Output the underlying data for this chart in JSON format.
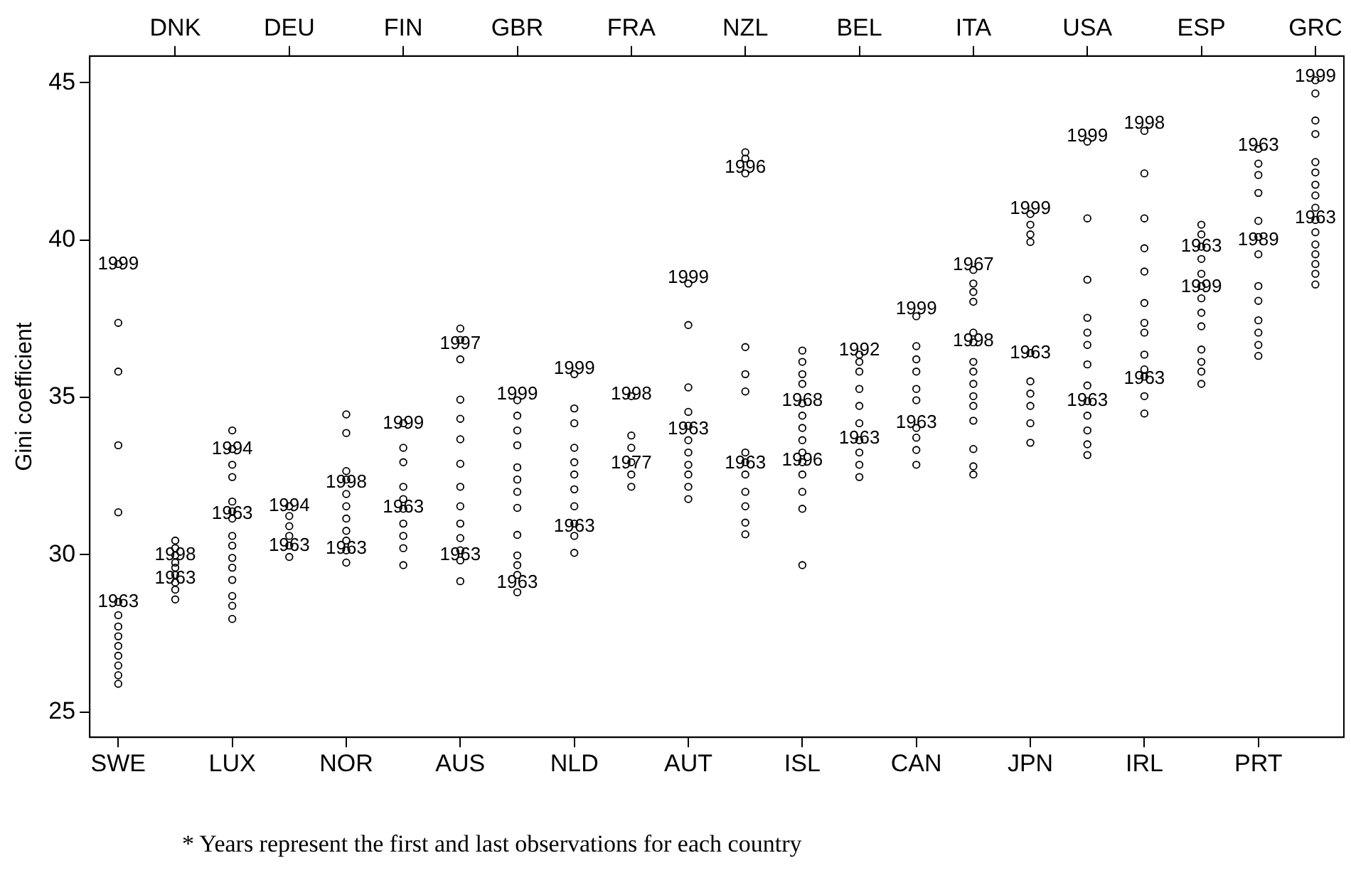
{
  "chart_data": {
    "type": "scatter",
    "ylabel": "Gini coefficient",
    "categories": [
      "SWE",
      "DNK",
      "LUX",
      "DEU",
      "NOR",
      "FIN",
      "AUS",
      "GBR",
      "NLD",
      "FRA",
      "AUT",
      "NZL",
      "ISL",
      "BEL",
      "CAN",
      "ITA",
      "JPN",
      "USA",
      "IRL",
      "ESP",
      "PRT",
      "GRC"
    ],
    "ylim": [
      24.2,
      45.85
    ],
    "yticks": [
      25,
      30,
      35,
      40,
      45
    ],
    "grid": false,
    "legend": false,
    "marker": "circle",
    "series": [
      {
        "color": "#000000",
        "x": [
          "SWE",
          "SWE",
          "SWE",
          "SWE",
          "SWE",
          "SWE",
          "SWE",
          "SWE",
          "SWE",
          "SWE",
          "SWE",
          "SWE",
          "SWE",
          "SWE"
        ],
        "values": [
          39.24,
          37.37,
          35.82,
          33.48,
          31.35,
          28.5,
          28.08,
          27.72,
          27.41,
          27.1,
          26.79,
          26.48,
          26.17,
          25.9
        ]
      },
      {
        "color": "#000000",
        "x": [
          "DNK",
          "DNK",
          "DNK",
          "DNK",
          "DNK",
          "DNK",
          "DNK",
          "DNK",
          "DNK"
        ],
        "values": [
          30.45,
          30.21,
          29.98,
          29.75,
          29.59,
          29.36,
          29.12,
          28.89,
          28.58
        ]
      },
      {
        "color": "#000000",
        "x": [
          "LUX",
          "LUX",
          "LUX",
          "LUX",
          "LUX",
          "LUX",
          "LUX",
          "LUX",
          "LUX",
          "LUX",
          "LUX",
          "LUX",
          "LUX",
          "LUX",
          "LUX"
        ],
        "values": [
          33.95,
          33.36,
          32.86,
          32.47,
          31.69,
          31.38,
          31.15,
          30.6,
          30.29,
          29.9,
          29.59,
          29.2,
          28.69,
          28.38,
          27.96
        ]
      },
      {
        "color": "#000000",
        "x": [
          "DEU",
          "DEU",
          "DEU",
          "DEU",
          "DEU",
          "DEU"
        ],
        "values": [
          31.54,
          31.23,
          30.91,
          30.6,
          30.29,
          29.93
        ]
      },
      {
        "color": "#000000",
        "x": [
          "NOR",
          "NOR",
          "NOR",
          "NOR",
          "NOR",
          "NOR",
          "NOR",
          "NOR",
          "NOR",
          "NOR",
          "NOR"
        ],
        "values": [
          34.46,
          33.87,
          32.66,
          32.39,
          31.93,
          31.54,
          31.15,
          30.76,
          30.45,
          30.14,
          29.75
        ]
      },
      {
        "color": "#000000",
        "x": [
          "FIN",
          "FIN",
          "FIN",
          "FIN",
          "FIN",
          "FIN",
          "FIN",
          "FIN",
          "FIN",
          "FIN"
        ],
        "values": [
          34.18,
          33.4,
          32.94,
          32.16,
          31.77,
          31.46,
          30.99,
          30.6,
          30.21,
          29.67
        ]
      },
      {
        "color": "#000000",
        "x": [
          "AUS",
          "AUS",
          "AUS",
          "AUS",
          "AUS",
          "AUS",
          "AUS",
          "AUS",
          "AUS",
          "AUS",
          "AUS",
          "AUS",
          "AUS",
          "AUS"
        ],
        "values": [
          37.19,
          36.83,
          36.21,
          34.93,
          34.32,
          33.67,
          32.89,
          32.16,
          31.54,
          30.99,
          30.53,
          30.14,
          29.82,
          29.16
        ]
      },
      {
        "color": "#000000",
        "x": [
          "GBR",
          "GBR",
          "GBR",
          "GBR",
          "GBR",
          "GBR",
          "GBR",
          "GBR",
          "GBR",
          "GBR",
          "GBR",
          "GBR",
          "GBR"
        ],
        "values": [
          34.91,
          34.42,
          33.95,
          33.48,
          32.78,
          32.39,
          32.0,
          31.49,
          30.63,
          29.98,
          29.67,
          29.36,
          28.81
        ]
      },
      {
        "color": "#000000",
        "x": [
          "NLD",
          "NLD",
          "NLD",
          "NLD",
          "NLD",
          "NLD",
          "NLD",
          "NLD",
          "NLD",
          "NLD",
          "NLD"
        ],
        "values": [
          35.74,
          34.65,
          34.18,
          33.4,
          32.94,
          32.55,
          32.08,
          31.54,
          30.99,
          30.6,
          30.06
        ]
      },
      {
        "color": "#000000",
        "x": [
          "FRA",
          "FRA",
          "FRA",
          "FRA",
          "FRA",
          "FRA"
        ],
        "values": [
          35.04,
          33.79,
          33.4,
          32.94,
          32.55,
          32.16
        ]
      },
      {
        "color": "#000000",
        "x": [
          "AUT",
          "AUT",
          "AUT",
          "AUT",
          "AUT",
          "AUT",
          "AUT",
          "AUT",
          "AUT",
          "AUT",
          "AUT"
        ],
        "values": [
          38.62,
          37.3,
          35.32,
          34.54,
          34.1,
          33.64,
          33.25,
          32.86,
          32.55,
          32.16,
          31.77
        ]
      },
      {
        "color": "#000000",
        "x": [
          "NZL",
          "NZL",
          "NZL",
          "NZL",
          "NZL",
          "NZL",
          "NZL",
          "NZL",
          "NZL",
          "NZL",
          "NZL",
          "NZL",
          "NZL"
        ],
        "values": [
          42.79,
          42.59,
          42.12,
          36.6,
          35.74,
          35.19,
          33.25,
          32.94,
          32.55,
          32.0,
          31.54,
          31.02,
          30.65
        ]
      },
      {
        "color": "#000000",
        "x": [
          "ISL",
          "ISL",
          "ISL",
          "ISL",
          "ISL",
          "ISL",
          "ISL",
          "ISL",
          "ISL",
          "ISL",
          "ISL",
          "ISL",
          "ISL",
          "ISL"
        ],
        "values": [
          36.49,
          36.13,
          35.74,
          35.43,
          34.81,
          34.42,
          34.03,
          33.64,
          33.25,
          32.94,
          32.55,
          32.0,
          31.46,
          29.67
        ]
      },
      {
        "color": "#000000",
        "x": [
          "BEL",
          "BEL",
          "BEL",
          "BEL",
          "BEL",
          "BEL",
          "BEL",
          "BEL",
          "BEL",
          "BEL"
        ],
        "values": [
          36.36,
          36.13,
          35.82,
          35.27,
          34.73,
          34.18,
          33.64,
          33.25,
          32.86,
          32.47
        ]
      },
      {
        "color": "#000000",
        "x": [
          "CAN",
          "CAN",
          "CAN",
          "CAN",
          "CAN",
          "CAN",
          "CAN",
          "CAN",
          "CAN",
          "CAN"
        ],
        "values": [
          37.58,
          36.63,
          36.21,
          35.82,
          35.27,
          34.91,
          34.03,
          33.72,
          33.33,
          32.86
        ]
      },
      {
        "color": "#000000",
        "x": [
          "ITA",
          "ITA",
          "ITA",
          "ITA",
          "ITA",
          "ITA",
          "ITA",
          "ITA",
          "ITA",
          "ITA",
          "ITA",
          "ITA",
          "ITA",
          "ITA",
          "ITA"
        ],
        "values": [
          39.05,
          38.62,
          38.35,
          38.04,
          37.06,
          36.75,
          36.13,
          35.82,
          35.43,
          35.04,
          34.73,
          34.26,
          33.36,
          32.81,
          32.55
        ]
      },
      {
        "color": "#000000",
        "x": [
          "JPN",
          "JPN",
          "JPN",
          "JPN",
          "JPN",
          "JPN",
          "JPN",
          "JPN",
          "JPN",
          "JPN"
        ],
        "values": [
          40.83,
          40.49,
          40.18,
          39.94,
          36.41,
          35.51,
          35.12,
          34.73,
          34.18,
          33.56
        ]
      },
      {
        "color": "#000000",
        "x": [
          "USA",
          "USA",
          "USA",
          "USA",
          "USA",
          "USA",
          "USA",
          "USA",
          "USA",
          "USA",
          "USA",
          "USA",
          "USA"
        ],
        "values": [
          43.13,
          40.69,
          38.74,
          37.53,
          37.06,
          36.67,
          36.05,
          35.38,
          34.88,
          34.42,
          33.95,
          33.51,
          33.17
        ]
      },
      {
        "color": "#000000",
        "x": [
          "IRL",
          "IRL",
          "IRL",
          "IRL",
          "IRL",
          "IRL",
          "IRL",
          "IRL",
          "IRL",
          "IRL",
          "IRL",
          "IRL",
          "IRL"
        ],
        "values": [
          43.47,
          42.12,
          40.69,
          39.74,
          39.0,
          38.0,
          37.37,
          37.06,
          36.36,
          35.89,
          35.66,
          35.04,
          34.49
        ]
      },
      {
        "color": "#000000",
        "x": [
          "ESP",
          "ESP",
          "ESP",
          "ESP",
          "ESP",
          "ESP",
          "ESP",
          "ESP",
          "ESP",
          "ESP",
          "ESP",
          "ESP",
          "ESP"
        ],
        "values": [
          40.49,
          40.18,
          39.79,
          39.4,
          38.93,
          38.54,
          38.15,
          37.69,
          37.26,
          36.52,
          36.13,
          35.82,
          35.43
        ]
      },
      {
        "color": "#000000",
        "x": [
          "PRT",
          "PRT",
          "PRT",
          "PRT",
          "PRT",
          "PRT",
          "PRT",
          "PRT",
          "PRT",
          "PRT",
          "PRT",
          "PRT",
          "PRT"
        ],
        "values": [
          42.9,
          42.43,
          42.07,
          41.5,
          40.61,
          40.1,
          39.55,
          38.54,
          38.07,
          37.45,
          37.06,
          36.67,
          36.32
        ]
      },
      {
        "color": "#000000",
        "x": [
          "GRC",
          "GRC",
          "GRC",
          "GRC",
          "GRC",
          "GRC",
          "GRC",
          "GRC",
          "GRC",
          "GRC",
          "GRC",
          "GRC",
          "GRC",
          "GRC",
          "GRC",
          "GRC"
        ],
        "values": [
          45.08,
          44.66,
          43.8,
          43.37,
          42.48,
          42.15,
          41.76,
          41.42,
          41.03,
          40.64,
          40.25,
          39.86,
          39.55,
          39.24,
          38.93,
          38.59
        ]
      }
    ],
    "annotations": [
      {
        "text": "1999",
        "x": "SWE",
        "y": 39.24
      },
      {
        "text": "1963",
        "x": "SWE",
        "y": 28.5
      },
      {
        "text": "1998",
        "x": "DNK",
        "y": 29.98
      },
      {
        "text": "1963",
        "x": "DNK",
        "y": 29.25
      },
      {
        "text": "1994",
        "x": "LUX",
        "y": 33.36
      },
      {
        "text": "1963",
        "x": "LUX",
        "y": 31.3
      },
      {
        "text": "1994",
        "x": "DEU",
        "y": 31.54
      },
      {
        "text": "1963",
        "x": "DEU",
        "y": 30.29
      },
      {
        "text": "1998",
        "x": "NOR",
        "y": 32.3
      },
      {
        "text": "1963",
        "x": "NOR",
        "y": 30.2
      },
      {
        "text": "1999",
        "x": "FIN",
        "y": 34.18
      },
      {
        "text": "1963",
        "x": "FIN",
        "y": 31.5
      },
      {
        "text": "1997",
        "x": "AUS",
        "y": 36.7
      },
      {
        "text": "1963",
        "x": "AUS",
        "y": 30.0
      },
      {
        "text": "1999",
        "x": "GBR",
        "y": 35.1
      },
      {
        "text": "1963",
        "x": "GBR",
        "y": 29.1
      },
      {
        "text": "1999",
        "x": "NLD",
        "y": 35.9
      },
      {
        "text": "1963",
        "x": "NLD",
        "y": 30.9
      },
      {
        "text": "1998",
        "x": "FRA",
        "y": 35.1
      },
      {
        "text": "1977",
        "x": "FRA",
        "y": 32.9
      },
      {
        "text": "1999",
        "x": "AUT",
        "y": 38.8
      },
      {
        "text": "1963",
        "x": "AUT",
        "y": 34.0
      },
      {
        "text": "1996",
        "x": "NZL",
        "y": 42.3
      },
      {
        "text": "1963",
        "x": "NZL",
        "y": 32.9
      },
      {
        "text": "1968",
        "x": "ISL",
        "y": 34.9
      },
      {
        "text": "1996",
        "x": "ISL",
        "y": 33.0
      },
      {
        "text": "1992",
        "x": "BEL",
        "y": 36.5
      },
      {
        "text": "1963",
        "x": "BEL",
        "y": 33.7
      },
      {
        "text": "1999",
        "x": "CAN",
        "y": 37.8
      },
      {
        "text": "1963",
        "x": "CAN",
        "y": 34.2
      },
      {
        "text": "1967",
        "x": "ITA",
        "y": 39.2
      },
      {
        "text": "1998",
        "x": "ITA",
        "y": 36.8
      },
      {
        "text": "1999",
        "x": "JPN",
        "y": 41.0
      },
      {
        "text": "1963",
        "x": "JPN",
        "y": 36.41
      },
      {
        "text": "1999",
        "x": "USA",
        "y": 43.3
      },
      {
        "text": "1963",
        "x": "USA",
        "y": 34.9
      },
      {
        "text": "1998",
        "x": "IRL",
        "y": 43.7
      },
      {
        "text": "1963",
        "x": "IRL",
        "y": 35.6
      },
      {
        "text": "1963",
        "x": "ESP",
        "y": 39.8
      },
      {
        "text": "1999",
        "x": "ESP",
        "y": 38.5
      },
      {
        "text": "1963",
        "x": "PRT",
        "y": 43.0
      },
      {
        "text": "1989",
        "x": "PRT",
        "y": 40.0
      },
      {
        "text": "1999",
        "x": "GRC",
        "y": 45.2
      },
      {
        "text": "1963",
        "x": "GRC",
        "y": 40.7
      },
      "* Years represent the first and last observations for each country"
    ]
  }
}
